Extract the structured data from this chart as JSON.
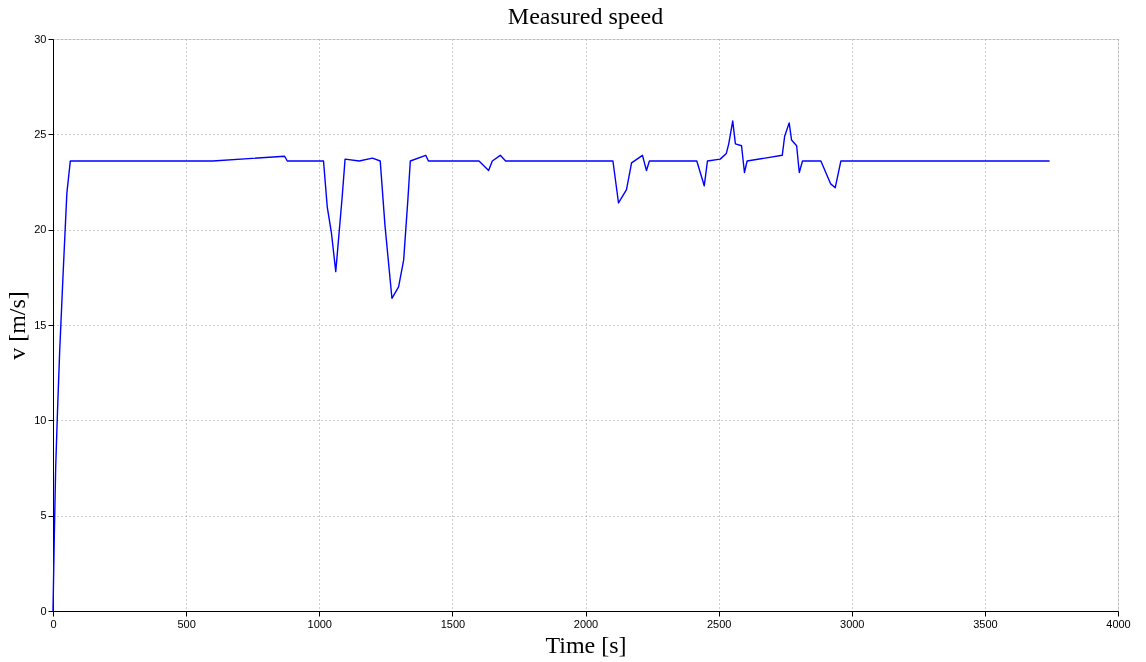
{
  "chart_data": {
    "type": "line",
    "title": "Measured speed",
    "xlabel": "Time [s]",
    "ylabel": "v [m/s]",
    "x": [
      0,
      5,
      10,
      17,
      25,
      38,
      52,
      65,
      200,
      400,
      600,
      870,
      880,
      1000,
      1016,
      1030,
      1046,
      1062,
      1086,
      1097,
      1150,
      1200,
      1229,
      1247,
      1273,
      1298,
      1317,
      1333,
      1342,
      1400,
      1410,
      1600,
      1636,
      1650,
      1680,
      1700,
      1900,
      2103,
      2124,
      2154,
      2173,
      2214,
      2229,
      2240,
      2418,
      2446,
      2458,
      2506,
      2529,
      2538,
      2553,
      2563,
      2586,
      2597,
      2607,
      2739,
      2748,
      2765,
      2774,
      2793,
      2803,
      2815,
      2884,
      2921,
      2938,
      2959,
      3200,
      3500,
      3743
    ],
    "series": [
      {
        "color": "#0000ff",
        "values": [
          0,
          4,
          7.5,
          10.5,
          13.6,
          17.7,
          21.9,
          23.6,
          23.6,
          23.6,
          23.6,
          23.85,
          23.6,
          23.6,
          23.6,
          21.2,
          19.8,
          17.8,
          21.7,
          23.7,
          23.6,
          23.75,
          23.6,
          20.2,
          16.4,
          17.0,
          18.4,
          21.6,
          23.6,
          23.9,
          23.6,
          23.6,
          23.1,
          23.6,
          23.9,
          23.6,
          23.6,
          23.6,
          21.4,
          22.1,
          23.5,
          23.9,
          23.1,
          23.6,
          23.6,
          22.3,
          23.6,
          23.7,
          24.0,
          24.5,
          25.7,
          24.5,
          24.4,
          23.0,
          23.6,
          23.9,
          24.9,
          25.6,
          24.7,
          24.4,
          23.0,
          23.6,
          23.6,
          22.4,
          22.2,
          23.6,
          23.6,
          23.6,
          23.6
        ]
      }
    ],
    "xlim": [
      0,
      4000
    ],
    "xticks": [
      0,
      500,
      1000,
      1500,
      2000,
      2500,
      3000,
      3500,
      4000
    ],
    "ylim": [
      0,
      30
    ],
    "yticks": [
      0,
      5,
      10,
      15,
      20,
      25,
      30
    ],
    "grid": true,
    "marker": "none",
    "line_style": "solid",
    "legend": false
  }
}
